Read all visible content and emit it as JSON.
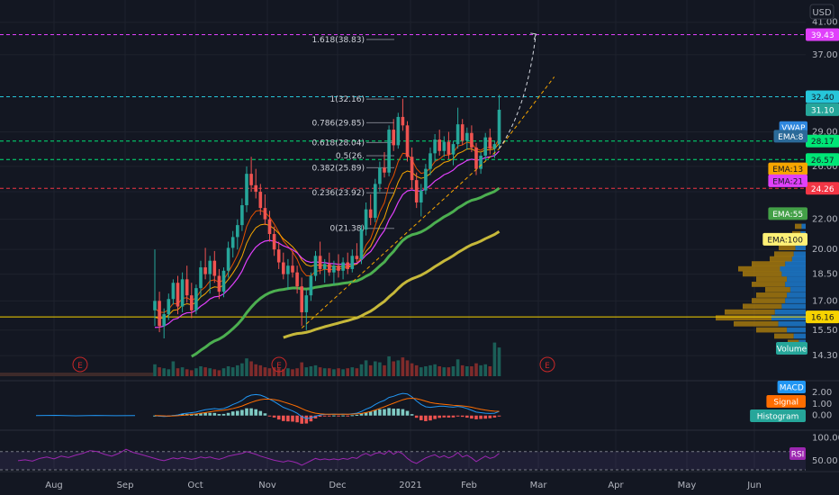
{
  "header": {
    "currency": "USD"
  },
  "colors": {
    "background": "#131722",
    "up": "#26a69a",
    "down": "#ef5350",
    "ema8": "#e65100",
    "ema13": "#f7a600",
    "ema21": "#e040fb",
    "ema55": "#4caf50",
    "ema100": "#c6b83a",
    "vwap": "#2e86de",
    "macd": "#2196f3",
    "signal": "#ff6d00",
    "rsi": "#9c27b0"
  },
  "chart_data": {
    "type": "candlestick",
    "x_ticks": [
      "Aug",
      "Sep",
      "Oct",
      "Nov",
      "Dec",
      "2021",
      "Feb",
      "Mar",
      "Apr",
      "May",
      "Jun"
    ],
    "price_ticks": [
      "41.00",
      "37.00",
      "29.00",
      "26.00",
      "24.00",
      "22.00",
      "20.00",
      "18.50",
      "17.00",
      "15.50",
      "14.30"
    ],
    "ylim": [
      13.4,
      43
    ],
    "price_scale": "log",
    "candles": [
      {
        "o": 16.5,
        "h": 20.0,
        "l": 15.7,
        "c": 17.0
      },
      {
        "o": 17.0,
        "h": 17.5,
        "l": 15.4,
        "c": 15.7
      },
      {
        "o": 15.7,
        "h": 16.6,
        "l": 15.1,
        "c": 16.3
      },
      {
        "o": 16.3,
        "h": 17.4,
        "l": 16.0,
        "c": 17.1
      },
      {
        "o": 17.1,
        "h": 18.2,
        "l": 16.8,
        "c": 18.0
      },
      {
        "o": 18.0,
        "h": 18.4,
        "l": 16.3,
        "c": 16.7
      },
      {
        "o": 16.7,
        "h": 18.6,
        "l": 16.4,
        "c": 18.2
      },
      {
        "o": 18.2,
        "h": 19.0,
        "l": 16.9,
        "c": 17.3
      },
      {
        "o": 17.3,
        "h": 18.0,
        "l": 16.1,
        "c": 16.5
      },
      {
        "o": 16.5,
        "h": 17.9,
        "l": 16.3,
        "c": 17.7
      },
      {
        "o": 17.7,
        "h": 19.3,
        "l": 17.2,
        "c": 18.9
      },
      {
        "o": 18.9,
        "h": 20.1,
        "l": 18.2,
        "c": 18.5
      },
      {
        "o": 18.5,
        "h": 19.6,
        "l": 17.4,
        "c": 19.3
      },
      {
        "o": 19.3,
        "h": 19.9,
        "l": 18.0,
        "c": 18.4
      },
      {
        "o": 18.4,
        "h": 18.8,
        "l": 17.1,
        "c": 17.5
      },
      {
        "o": 17.5,
        "h": 18.9,
        "l": 17.2,
        "c": 18.7
      },
      {
        "o": 18.7,
        "h": 20.5,
        "l": 18.3,
        "c": 20.1
      },
      {
        "o": 20.1,
        "h": 21.2,
        "l": 19.5,
        "c": 20.8
      },
      {
        "o": 20.8,
        "h": 22.0,
        "l": 20.0,
        "c": 21.6
      },
      {
        "o": 21.6,
        "h": 23.5,
        "l": 21.2,
        "c": 23.0
      },
      {
        "o": 23.0,
        "h": 26.0,
        "l": 22.5,
        "c": 25.4
      },
      {
        "o": 25.4,
        "h": 26.8,
        "l": 24.0,
        "c": 24.5
      },
      {
        "o": 24.5,
        "h": 25.8,
        "l": 23.5,
        "c": 24.0
      },
      {
        "o": 24.0,
        "h": 24.6,
        "l": 22.3,
        "c": 22.8
      },
      {
        "o": 22.8,
        "h": 23.8,
        "l": 21.6,
        "c": 22.0
      },
      {
        "o": 22.0,
        "h": 22.6,
        "l": 20.5,
        "c": 21.0
      },
      {
        "o": 21.0,
        "h": 21.5,
        "l": 19.6,
        "c": 20.0
      },
      {
        "o": 20.0,
        "h": 20.5,
        "l": 18.8,
        "c": 19.2
      },
      {
        "o": 19.2,
        "h": 19.8,
        "l": 18.2,
        "c": 18.5
      },
      {
        "o": 18.5,
        "h": 19.4,
        "l": 17.6,
        "c": 19.0
      },
      {
        "o": 19.0,
        "h": 19.9,
        "l": 18.3,
        "c": 18.6
      },
      {
        "o": 18.6,
        "h": 19.0,
        "l": 17.4,
        "c": 17.8
      },
      {
        "o": 17.8,
        "h": 18.3,
        "l": 15.7,
        "c": 16.4
      },
      {
        "o": 16.4,
        "h": 17.6,
        "l": 15.5,
        "c": 17.3
      },
      {
        "o": 17.3,
        "h": 18.6,
        "l": 17.0,
        "c": 18.4
      },
      {
        "o": 18.4,
        "h": 19.9,
        "l": 18.1,
        "c": 19.6
      },
      {
        "o": 19.6,
        "h": 20.5,
        "l": 18.5,
        "c": 18.8
      },
      {
        "o": 18.8,
        "h": 19.4,
        "l": 18.0,
        "c": 19.1
      },
      {
        "o": 19.1,
        "h": 19.8,
        "l": 18.4,
        "c": 18.6
      },
      {
        "o": 18.6,
        "h": 19.3,
        "l": 17.9,
        "c": 19.0
      },
      {
        "o": 19.0,
        "h": 19.7,
        "l": 18.3,
        "c": 18.7
      },
      {
        "o": 18.7,
        "h": 19.5,
        "l": 18.2,
        "c": 19.2
      },
      {
        "o": 19.2,
        "h": 19.8,
        "l": 18.5,
        "c": 18.8
      },
      {
        "o": 18.8,
        "h": 20.0,
        "l": 18.6,
        "c": 19.6
      },
      {
        "o": 19.6,
        "h": 20.4,
        "l": 19.2,
        "c": 19.4
      },
      {
        "o": 19.4,
        "h": 21.6,
        "l": 19.1,
        "c": 21.3
      },
      {
        "o": 21.3,
        "h": 23.2,
        "l": 20.9,
        "c": 22.7
      },
      {
        "o": 22.7,
        "h": 23.8,
        "l": 21.6,
        "c": 22.1
      },
      {
        "o": 22.1,
        "h": 25.0,
        "l": 21.8,
        "c": 24.6
      },
      {
        "o": 24.6,
        "h": 26.4,
        "l": 24.0,
        "c": 25.9
      },
      {
        "o": 25.9,
        "h": 27.2,
        "l": 25.1,
        "c": 25.5
      },
      {
        "o": 25.5,
        "h": 29.6,
        "l": 25.2,
        "c": 29.2
      },
      {
        "o": 29.2,
        "h": 30.2,
        "l": 27.3,
        "c": 27.8
      },
      {
        "o": 27.8,
        "h": 30.8,
        "l": 27.5,
        "c": 30.4
      },
      {
        "o": 30.4,
        "h": 32.2,
        "l": 29.1,
        "c": 29.6
      },
      {
        "o": 29.6,
        "h": 30.0,
        "l": 26.4,
        "c": 26.8
      },
      {
        "o": 26.8,
        "h": 27.6,
        "l": 24.2,
        "c": 24.9
      },
      {
        "o": 24.9,
        "h": 25.5,
        "l": 22.8,
        "c": 23.2
      },
      {
        "o": 23.2,
        "h": 24.6,
        "l": 22.2,
        "c": 24.1
      },
      {
        "o": 24.1,
        "h": 26.2,
        "l": 23.8,
        "c": 25.8
      },
      {
        "o": 25.8,
        "h": 27.6,
        "l": 25.3,
        "c": 27.1
      },
      {
        "o": 27.1,
        "h": 28.8,
        "l": 26.4,
        "c": 28.3
      },
      {
        "o": 28.3,
        "h": 29.2,
        "l": 26.9,
        "c": 27.3
      },
      {
        "o": 27.3,
        "h": 28.6,
        "l": 26.8,
        "c": 28.1
      },
      {
        "o": 28.1,
        "h": 29.0,
        "l": 26.6,
        "c": 27.0
      },
      {
        "o": 27.0,
        "h": 28.2,
        "l": 26.1,
        "c": 27.9
      },
      {
        "o": 27.9,
        "h": 31.3,
        "l": 27.5,
        "c": 29.7
      },
      {
        "o": 29.7,
        "h": 30.2,
        "l": 27.8,
        "c": 28.2
      },
      {
        "o": 28.2,
        "h": 29.4,
        "l": 27.4,
        "c": 28.9
      },
      {
        "o": 28.9,
        "h": 29.6,
        "l": 27.2,
        "c": 27.6
      },
      {
        "o": 27.6,
        "h": 28.0,
        "l": 25.3,
        "c": 25.8
      },
      {
        "o": 25.8,
        "h": 27.2,
        "l": 25.4,
        "c": 26.9
      },
      {
        "o": 26.9,
        "h": 28.9,
        "l": 26.5,
        "c": 28.5
      },
      {
        "o": 28.5,
        "h": 29.3,
        "l": 27.0,
        "c": 27.5
      },
      {
        "o": 27.5,
        "h": 28.2,
        "l": 26.7,
        "c": 27.9
      },
      {
        "o": 27.9,
        "h": 32.6,
        "l": 27.6,
        "c": 31.1
      }
    ],
    "volume": [
      1.2,
      0.9,
      0.8,
      0.7,
      1.5,
      0.8,
      0.9,
      0.7,
      0.6,
      0.8,
      1.0,
      0.9,
      0.8,
      0.7,
      0.6,
      0.8,
      1.0,
      0.9,
      1.1,
      1.3,
      1.8,
      1.5,
      1.2,
      1.1,
      0.9,
      0.8,
      0.9,
      0.8,
      0.7,
      0.8,
      0.7,
      0.8,
      1.4,
      0.9,
      1.0,
      1.1,
      0.9,
      0.8,
      0.8,
      0.7,
      0.8,
      0.7,
      0.8,
      0.9,
      0.8,
      1.2,
      1.6,
      1.1,
      1.5,
      1.4,
      1.1,
      2.0,
      1.5,
      1.6,
      1.9,
      1.6,
      1.3,
      1.1,
      0.9,
      1.0,
      1.1,
      1.2,
      1.0,
      0.9,
      0.9,
      1.0,
      1.7,
      1.1,
      1.0,
      1.0,
      1.3,
      1.1,
      1.2,
      1.0,
      3.4,
      2.9
    ],
    "fib_levels": [
      {
        "label": "1.618(38.83)",
        "value": 38.83
      },
      {
        "label": "1(32.16)",
        "value": 32.16
      },
      {
        "label": "0.786(29.85)",
        "value": 29.85
      },
      {
        "label": "0.618(28.04)",
        "value": 28.04
      },
      {
        "label": "0.5(26.",
        "value": 26.9
      },
      {
        "label": "0.382(25.89)",
        "value": 25.89
      },
      {
        "label": "0.236(23.92)",
        "value": 23.92
      },
      {
        "label": "0(21.38)",
        "value": 21.38
      }
    ],
    "horizontal_lines": [
      {
        "value": 39.43,
        "label": "39.43",
        "color": "#e040fb",
        "style": "dashed"
      },
      {
        "value": 32.4,
        "label": "32.40",
        "color": "#26c6da",
        "style": "dashed"
      },
      {
        "value": 28.17,
        "label": "28.17",
        "color": "#00e676",
        "style": "dashed"
      },
      {
        "value": 26.57,
        "label": "26.57",
        "color": "#00e676",
        "style": "dashed"
      },
      {
        "value": 24.26,
        "label": "24.26",
        "color": "#f23645",
        "style": "dashed"
      },
      {
        "value": 16.16,
        "label": "16.16",
        "color": "#f7d300",
        "style": "solid"
      }
    ],
    "axis_labels": [
      {
        "text": "31.10",
        "value": 31.1,
        "bg": "#26a69a",
        "fg": "#ffffff"
      },
      {
        "text": "VWAP",
        "value": 29.4,
        "bg": "#2e86de",
        "fg": "#ffffff"
      },
      {
        "text": "EMA:8",
        "value": 28.6,
        "bg": "#2b6a99",
        "fg": "#ffffff"
      },
      {
        "text": "EMA:13",
        "value": 25.8,
        "bg": "#f7a600",
        "fg": "#131722"
      },
      {
        "text": "EMA:21",
        "value": 24.85,
        "bg": "#e040fb",
        "fg": "#131722"
      },
      {
        "text": "EMA:55",
        "value": 22.4,
        "bg": "#43a047",
        "fg": "#ffffff"
      },
      {
        "text": "EMA:100",
        "value": 20.65,
        "bg": "#fff176",
        "fg": "#131722"
      }
    ],
    "trendlines": [
      {
        "from": [
          32,
          15.6
        ],
        "to": [
          75,
          27.5
        ],
        "color": "#f7a600",
        "style": "dashed"
      },
      {
        "from": [
          75,
          27.5
        ],
        "to": [
          87,
          34.5
        ],
        "color": "#f7a600",
        "style": "dashed"
      }
    ],
    "projection": {
      "from": [
        75,
        27.5
      ],
      "to": [
        83,
        39.5
      ],
      "color": "#d1d4dc"
    },
    "earnings_markers": [
      {
        "x": 10,
        "label": "E"
      },
      {
        "x": 33,
        "label": "E"
      },
      {
        "x": 83,
        "label": "E"
      }
    ],
    "volume_label": "Volume",
    "macd": {
      "ticks": [
        "2.00",
        "1.00",
        "0.00"
      ],
      "ylim": [
        -1.1,
        2.6
      ],
      "labels": [
        "MACD",
        "Signal",
        "Histogram"
      ],
      "macd": [
        0.0,
        -0.05,
        -0.08,
        -0.06,
        0.0,
        0.05,
        0.15,
        0.2,
        0.25,
        0.3,
        0.4,
        0.5,
        0.55,
        0.6,
        0.55,
        0.6,
        0.75,
        0.95,
        1.1,
        1.3,
        1.6,
        1.75,
        1.8,
        1.75,
        1.6,
        1.4,
        1.2,
        0.95,
        0.7,
        0.55,
        0.4,
        0.2,
        -0.1,
        -0.25,
        -0.2,
        -0.05,
        0.05,
        0.1,
        0.1,
        0.12,
        0.1,
        0.12,
        0.1,
        0.15,
        0.2,
        0.35,
        0.55,
        0.7,
        0.95,
        1.15,
        1.3,
        1.55,
        1.65,
        1.8,
        1.9,
        1.85,
        1.6,
        1.25,
        0.95,
        0.75,
        0.7,
        0.75,
        0.8,
        0.8,
        0.75,
        0.72,
        0.78,
        0.72,
        0.6,
        0.45,
        0.3,
        0.25,
        0.2,
        0.18,
        0.2,
        0.35
      ],
      "signal": [
        0.0,
        -0.01,
        -0.03,
        -0.04,
        -0.03,
        -0.01,
        0.02,
        0.06,
        0.1,
        0.14,
        0.2,
        0.26,
        0.32,
        0.38,
        0.42,
        0.46,
        0.52,
        0.6,
        0.7,
        0.82,
        0.98,
        1.13,
        1.26,
        1.36,
        1.41,
        1.41,
        1.37,
        1.29,
        1.17,
        1.05,
        0.92,
        0.78,
        0.6,
        0.43,
        0.3,
        0.2,
        0.15,
        0.12,
        0.11,
        0.11,
        0.11,
        0.11,
        0.11,
        0.12,
        0.14,
        0.18,
        0.26,
        0.35,
        0.47,
        0.61,
        0.75,
        0.91,
        1.06,
        1.21,
        1.35,
        1.45,
        1.48,
        1.44,
        1.35,
        1.23,
        1.12,
        1.05,
        1.0,
        0.96,
        0.92,
        0.88,
        0.86,
        0.83,
        0.78,
        0.71,
        0.62,
        0.54,
        0.47,
        0.41,
        0.37,
        0.36
      ]
    },
    "rsi": {
      "ticks": [
        "100.00",
        "50.00"
      ],
      "ylim": [
        30,
        105
      ],
      "label": "RSI",
      "band": [
        30,
        70
      ],
      "values": [
        55,
        52,
        50,
        53,
        56,
        54,
        57,
        55,
        53,
        55,
        58,
        56,
        58,
        55,
        53,
        56,
        60,
        62,
        64,
        66,
        70,
        67,
        64,
        60,
        57,
        54,
        51,
        49,
        47,
        50,
        48,
        45,
        40,
        45,
        50,
        55,
        52,
        54,
        52,
        54,
        52,
        55,
        53,
        57,
        55,
        62,
        66,
        61,
        66,
        68,
        64,
        72,
        64,
        70,
        65,
        55,
        48,
        44,
        50,
        56,
        60,
        63,
        57,
        61,
        56,
        60,
        68,
        58,
        62,
        56,
        48,
        54,
        60,
        55,
        58,
        66
      ]
    }
  }
}
